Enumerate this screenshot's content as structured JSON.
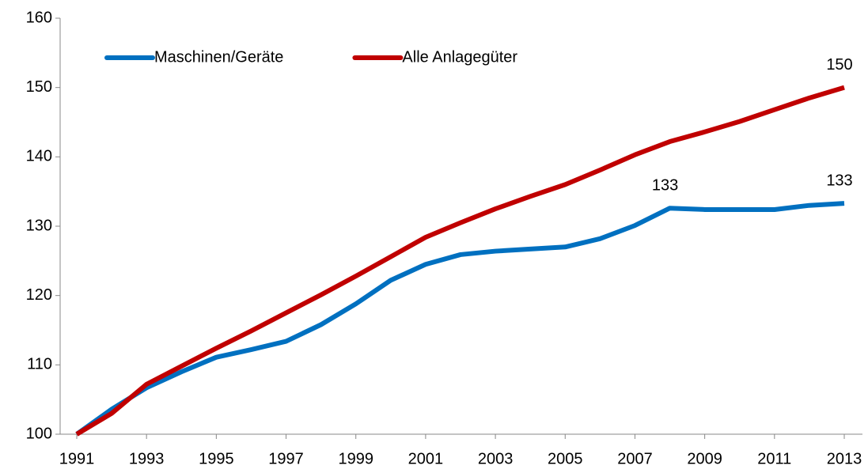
{
  "chart_data": {
    "type": "line",
    "x": [
      1991,
      1992,
      1993,
      1994,
      1995,
      1996,
      1997,
      1998,
      1999,
      2000,
      2001,
      2002,
      2003,
      2004,
      2005,
      2006,
      2007,
      2008,
      2009,
      2010,
      2011,
      2012,
      2013
    ],
    "xlim": [
      1991,
      2013
    ],
    "xticks": [
      1991,
      1993,
      1995,
      1997,
      1999,
      2001,
      2003,
      2005,
      2007,
      2009,
      2011,
      2013
    ],
    "ylim": [
      100,
      160
    ],
    "yticks": [
      100,
      110,
      120,
      130,
      140,
      150,
      160
    ],
    "legend": "top-left",
    "series": [
      {
        "name": "Maschinen/Geräte",
        "color": "#0070c0",
        "values": [
          100,
          103.6,
          106.7,
          109.0,
          111.1,
          112.2,
          113.4,
          115.8,
          118.8,
          122.2,
          124.5,
          125.9,
          126.4,
          126.7,
          127.0,
          128.2,
          130.1,
          132.6,
          132.4,
          132.4,
          132.4,
          133.0,
          133.3
        ],
        "value_labels": [
          null,
          null,
          null,
          null,
          null,
          null,
          null,
          null,
          null,
          null,
          null,
          null,
          null,
          null,
          null,
          null,
          null,
          "133",
          null,
          null,
          null,
          null,
          "133"
        ]
      },
      {
        "name": "Alle Anlagegüter",
        "color": "#c00000",
        "values": [
          100,
          103.0,
          107.2,
          109.8,
          112.4,
          114.9,
          117.5,
          120.1,
          122.8,
          125.6,
          128.4,
          130.5,
          132.5,
          134.3,
          136.0,
          138.1,
          140.3,
          142.2,
          143.6,
          145.1,
          146.8,
          148.5,
          150.0
        ],
        "value_labels": [
          null,
          null,
          null,
          null,
          null,
          null,
          null,
          null,
          null,
          null,
          null,
          null,
          null,
          null,
          null,
          null,
          null,
          null,
          null,
          null,
          null,
          null,
          "150"
        ]
      }
    ]
  }
}
